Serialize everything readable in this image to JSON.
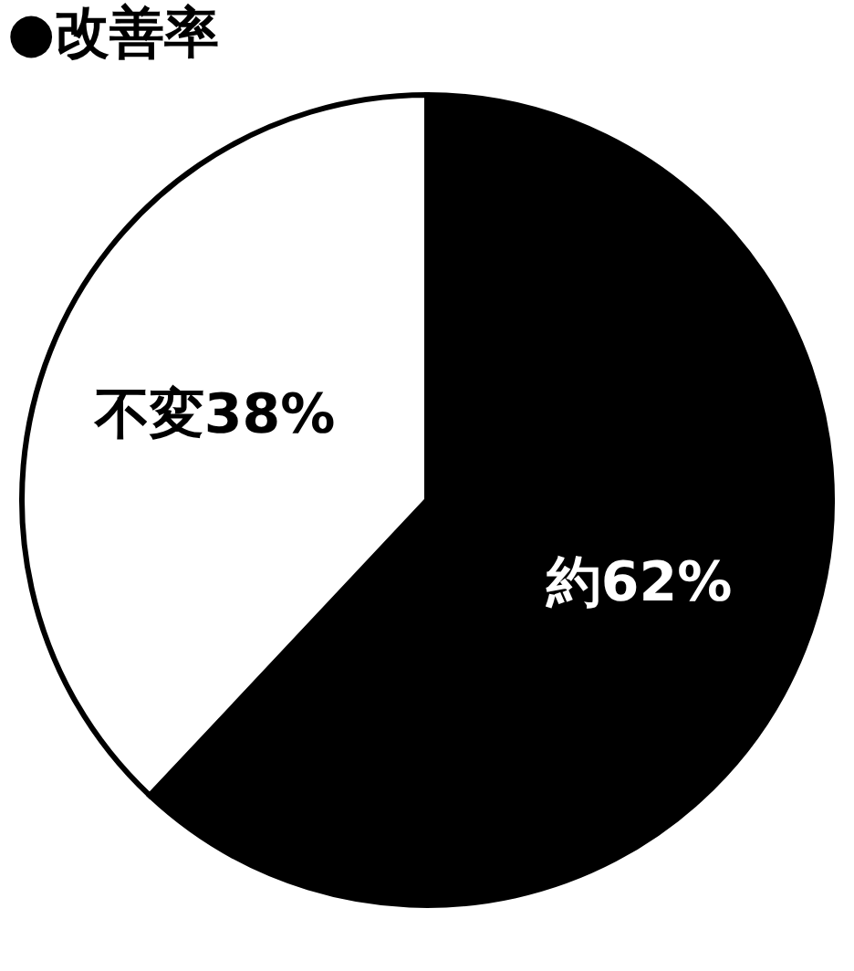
{
  "chart_data": {
    "type": "pie",
    "title": "●改善率",
    "categories": [
      null,
      null
    ],
    "values": [
      62,
      38
    ],
    "colors": [
      "#000000",
      "#ffffff"
    ],
    "value_labels": [
      "約62%",
      "不変38%"
    ]
  }
}
